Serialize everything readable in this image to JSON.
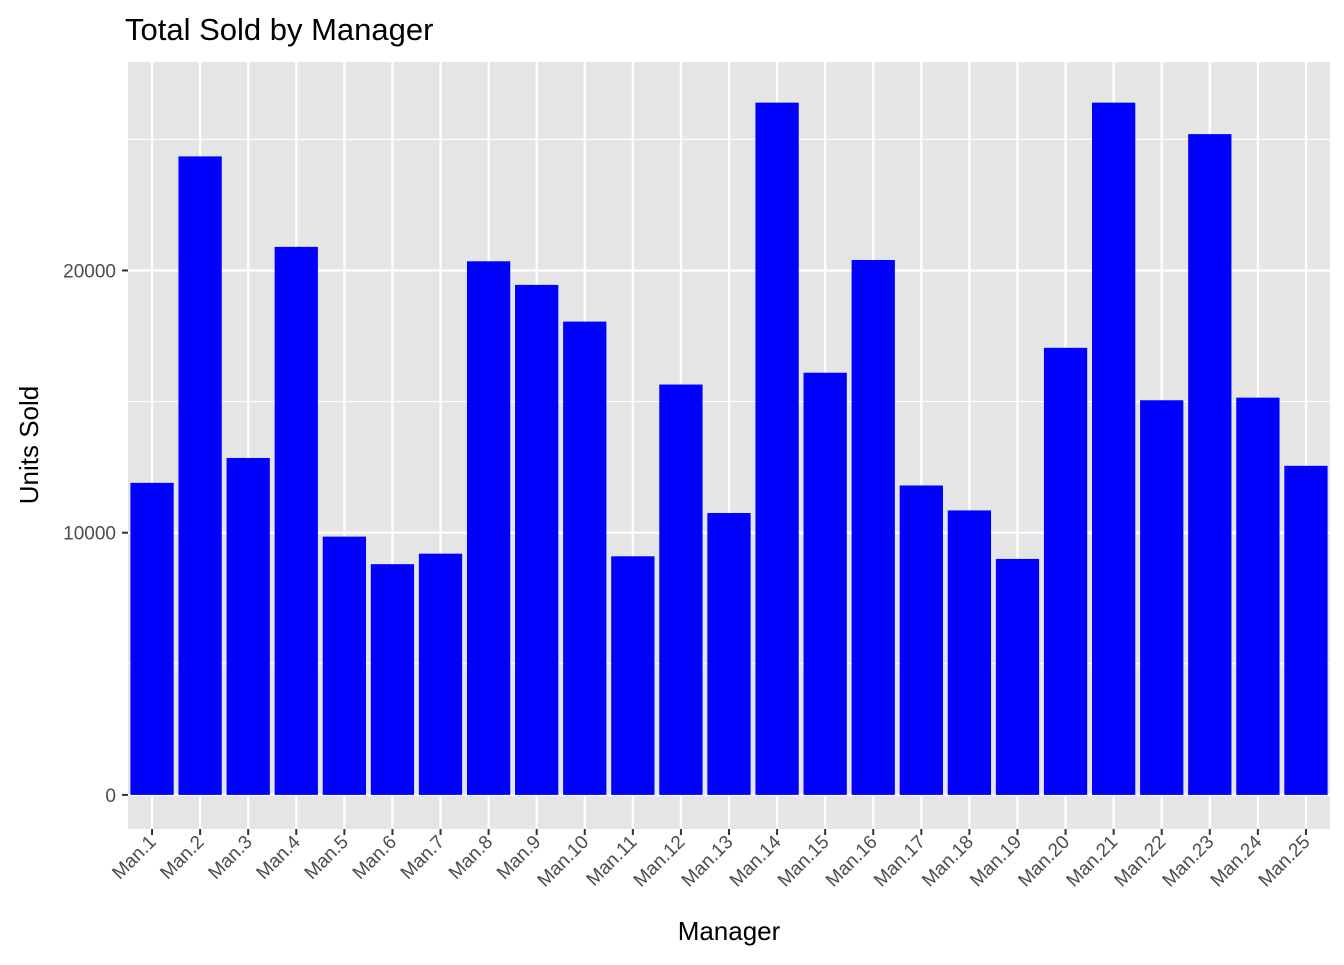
{
  "chart_data": {
    "type": "bar",
    "title": "Total Sold by Manager",
    "xlabel": "Manager",
    "ylabel": "Units Sold",
    "categories": [
      "Man.1",
      "Man.2",
      "Man.3",
      "Man.4",
      "Man.5",
      "Man.6",
      "Man.7",
      "Man.8",
      "Man.9",
      "Man.10",
      "Man.11",
      "Man.12",
      "Man.13",
      "Man.14",
      "Man.15",
      "Man.16",
      "Man.17",
      "Man.18",
      "Man.19",
      "Man.20",
      "Man.21",
      "Man.22",
      "Man.23",
      "Man.24",
      "Man.25"
    ],
    "values": [
      11900,
      24350,
      12850,
      20900,
      9850,
      8800,
      9200,
      20350,
      19450,
      18050,
      9100,
      15650,
      10750,
      26400,
      16100,
      20400,
      11800,
      10850,
      9000,
      17050,
      26400,
      15050,
      25200,
      15150,
      12550
    ],
    "ylim": [
      -1300,
      27950
    ],
    "y_ticks": [
      0,
      10000,
      20000
    ],
    "y_tick_labels": [
      "0",
      "10000",
      "20000"
    ],
    "grid": true,
    "bar_color": "#0000ff",
    "panel_background": "#e5e5e5",
    "grid_color": "#ffffff"
  }
}
